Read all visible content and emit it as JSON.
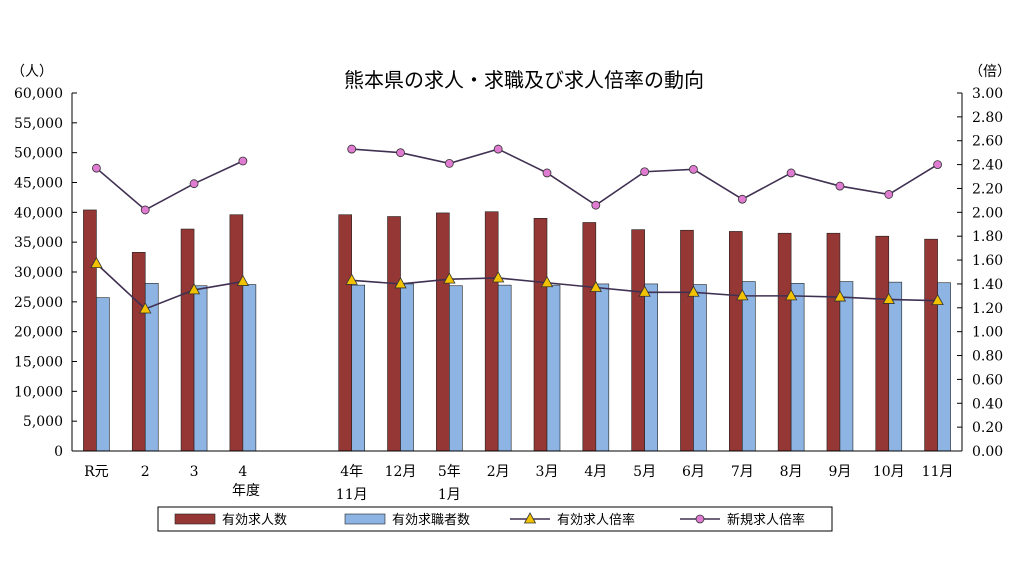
{
  "chart_data": {
    "type": "bar",
    "title": "熊本県の求人・求職及び求人倍率の動向",
    "y_left_label": "（人）",
    "y_right_label": "（倍）",
    "y_left_ticks": [
      "0",
      "5,000",
      "10,000",
      "15,000",
      "20,000",
      "25,000",
      "30,000",
      "35,000",
      "40,000",
      "45,000",
      "50,000",
      "55,000",
      "60,000"
    ],
    "y_right_ticks": [
      "0.00",
      "0.20",
      "0.40",
      "0.60",
      "0.80",
      "1.00",
      "1.20",
      "1.40",
      "1.60",
      "1.80",
      "2.00",
      "2.20",
      "2.40",
      "2.60",
      "2.80",
      "3.00"
    ],
    "ylim_left": [
      0,
      60000
    ],
    "ylim_right": [
      0,
      3.0
    ],
    "categories_line1": [
      "R元",
      "2",
      "3",
      "4",
      "4年",
      "12月",
      "5年",
      "2月",
      "3月",
      "4月",
      "5月",
      "6月",
      "7月",
      "8月",
      "9月",
      "10月",
      "11月"
    ],
    "categories_line2": [
      "",
      "",
      "",
      "",
      "11月",
      "",
      "1月",
      "",
      "",
      "",
      "",
      "",
      "",
      "",
      "",
      "",
      ""
    ],
    "group_note": "年度",
    "gap_after_index": 3,
    "series": [
      {
        "name": "有効求人数",
        "kind": "bar",
        "axis": "left",
        "color": "#953735",
        "values": [
          40400,
          33300,
          37200,
          39600,
          39600,
          39300,
          39900,
          40100,
          39000,
          38300,
          37100,
          37000,
          36800,
          36500,
          36500,
          36000,
          35500
        ]
      },
      {
        "name": "有効求職者数",
        "kind": "bar",
        "axis": "left",
        "color": "#8db4e2",
        "values": [
          25700,
          28100,
          27700,
          27900,
          27800,
          28000,
          27700,
          27800,
          27800,
          28000,
          28000,
          27900,
          28400,
          28100,
          28400,
          28300,
          28200
        ]
      },
      {
        "name": "有効求人倍率",
        "kind": "line",
        "axis": "right",
        "color": "#403152",
        "marker": "triangle",
        "markerColor": "#f2c200",
        "values": [
          1.57,
          1.19,
          1.35,
          1.42,
          1.43,
          1.4,
          1.44,
          1.45,
          1.41,
          1.37,
          1.33,
          1.33,
          1.3,
          1.3,
          1.29,
          1.27,
          1.26
        ]
      },
      {
        "name": "新規求人倍率",
        "kind": "line",
        "axis": "right",
        "color": "#403152",
        "marker": "circle",
        "markerColor": "#e07bd2",
        "values": [
          2.37,
          2.02,
          2.24,
          2.43,
          2.53,
          2.5,
          2.41,
          2.53,
          2.33,
          2.06,
          2.34,
          2.36,
          2.11,
          2.33,
          2.22,
          2.15,
          2.4
        ]
      }
    ],
    "legend_position": "bottom"
  }
}
